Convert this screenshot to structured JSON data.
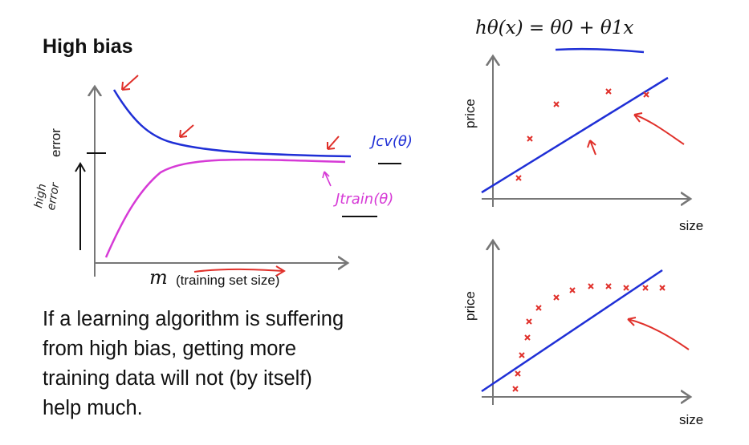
{
  "slide": {
    "title": "High bias",
    "formula": "hθ(x) = θ0 + θ1x",
    "body_lines": [
      "If a learning algorithm is suffering",
      "from  high  bias,  getting  more",
      "training data will not (by itself)",
      "help much."
    ]
  },
  "learning_curve": {
    "x_label_symbol": "m",
    "x_label_text": "(training set size)",
    "y_label": "error",
    "high_error_note": "high error",
    "cv_label": "Jcv(θ)",
    "train_label": "Jtrain(θ)",
    "cv_color": "#1f2fd6",
    "train_color": "#d63ad6",
    "annotation_color": "#e0302a"
  },
  "plot_top": {
    "y_label": "price",
    "x_label": "size",
    "line_color": "#1f2fd6",
    "point_color": "#e0302a"
  },
  "plot_bottom": {
    "y_label": "price",
    "x_label": "size",
    "line_color": "#1f2fd6",
    "point_color": "#e0302a"
  }
}
